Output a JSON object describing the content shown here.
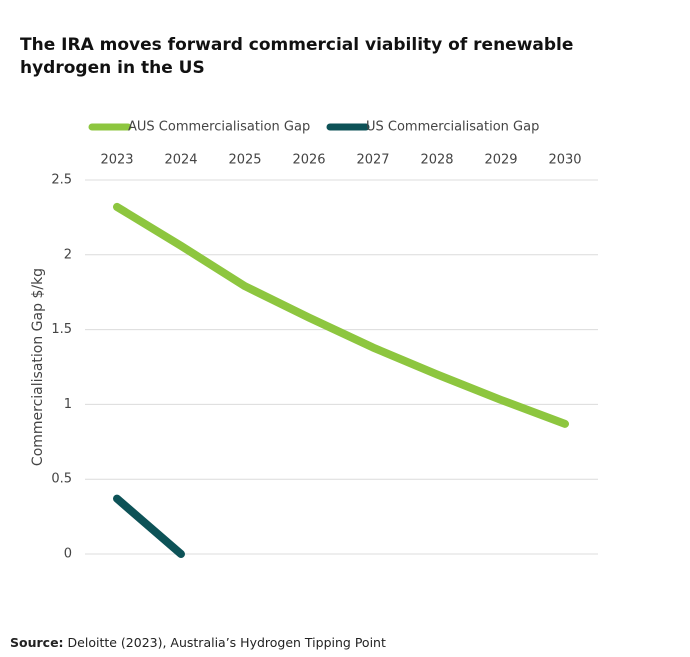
{
  "chart_data": {
    "type": "line",
    "title": "The IRA moves forward commercial viability of renewable hydrogen in the US",
    "y_label": "Commercialisation Gap $/kg",
    "categories": [
      "2023",
      "2024",
      "2025",
      "2026",
      "2027",
      "2028",
      "2029",
      "2030"
    ],
    "series": [
      {
        "name": "AUS Commercialisation Gap",
        "color": "#8dc63f",
        "values": [
          2.32,
          2.06,
          1.79,
          1.58,
          1.38,
          1.2,
          1.03,
          0.87
        ]
      },
      {
        "name": "US Commercialisation Gap",
        "color": "#0d5257",
        "values": [
          0.37,
          0,
          null,
          null,
          null,
          null,
          null,
          null
        ]
      }
    ],
    "ylim": [
      0,
      2.5
    ],
    "yticks": [
      0,
      0.5,
      1,
      1.5,
      2,
      2.5
    ],
    "grid": true,
    "source_label": "Source:",
    "source": "Deloitte (2023), Australia’s Hydrogen Tipping Point"
  }
}
